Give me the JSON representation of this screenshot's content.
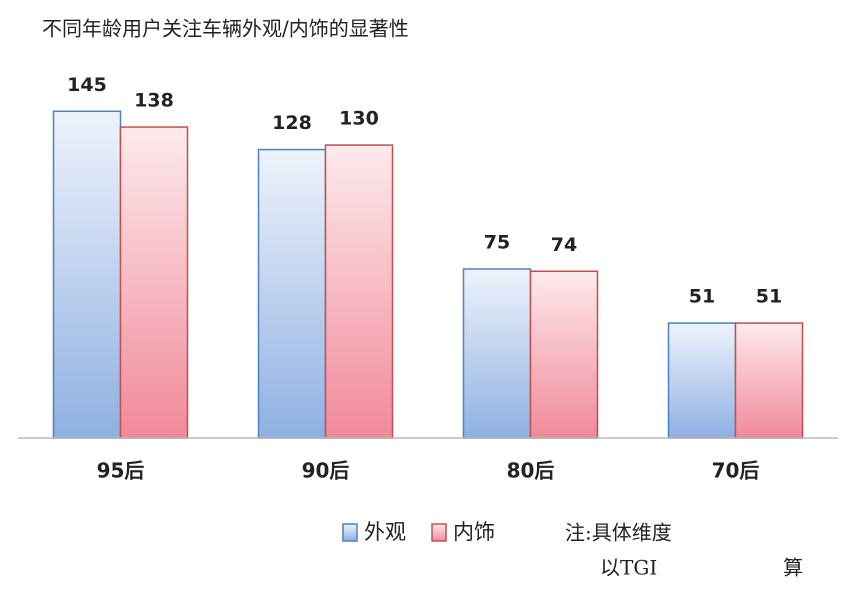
{
  "chart_data": {
    "type": "bar",
    "title": "不同年龄用户关注车辆外观/内饰的显著性",
    "categories": [
      "95后",
      "90后",
      "80后",
      "70后"
    ],
    "series": [
      {
        "name": "外观",
        "color": "#4f81bd",
        "values": [
          145,
          128,
          75,
          51
        ]
      },
      {
        "name": "内饰",
        "color": "#c0504d",
        "values": [
          138,
          130,
          74,
          51
        ]
      }
    ],
    "ylim": [
      0,
      150
    ],
    "notes": [
      "注:具体维度",
      "以TGI",
      "算"
    ]
  }
}
